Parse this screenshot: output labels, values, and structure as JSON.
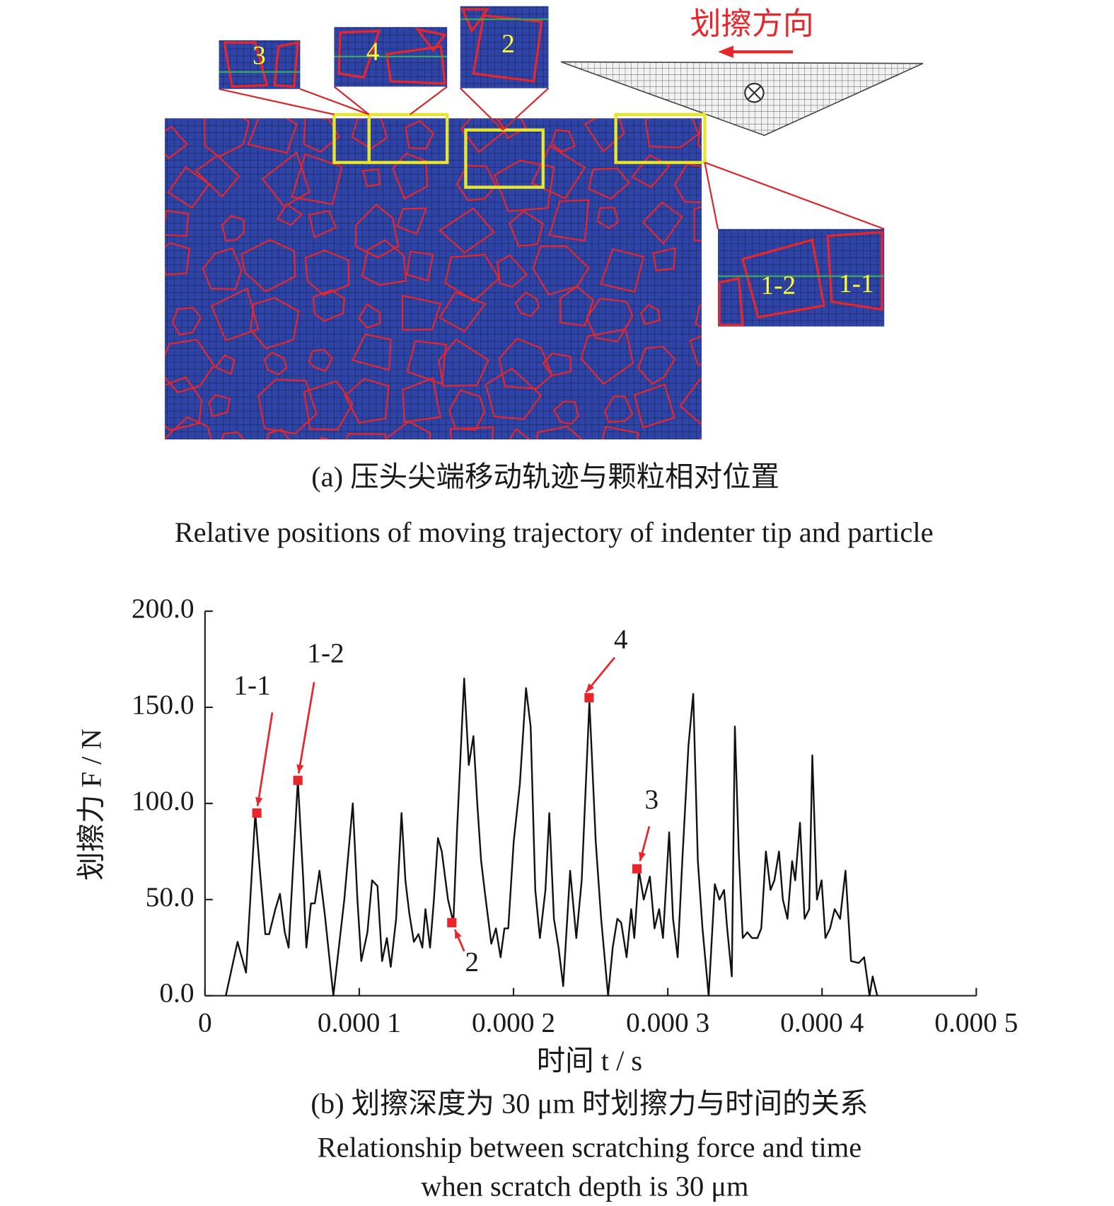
{
  "figure_a": {
    "direction_label": "划擦方向",
    "inset_labels": [
      "3",
      "4",
      "2",
      "1-2",
      "1-1"
    ],
    "caption_cn": "(a) 压头尖端移动轨迹与颗粒相对位置",
    "caption_en": "Relative positions of moving trajectory of indenter tip and particle"
  },
  "chart_data": {
    "type": "line",
    "xlabel": "时间 t / s",
    "ylabel": "划擦力 F / N",
    "caption_cn": "(b) 划擦深度为 30 μm 时划擦力与时间的关系",
    "caption_en": [
      "Relationship between scratching force and time",
      "when scratch depth is 30 μm"
    ],
    "xlim": [
      0,
      0.0005
    ],
    "ylim": [
      0,
      200
    ],
    "xticks": [
      0,
      {
        "value": 0.0001,
        "label": "0.000 1"
      },
      {
        "value": 0.0002,
        "label": "0.000 2"
      },
      {
        "value": 0.0003,
        "label": "0.000 3"
      },
      {
        "value": 0.0004,
        "label": "0.000 4"
      },
      {
        "value": 0.0005,
        "label": "0.000 5"
      }
    ],
    "yticks": [
      {
        "value": 0,
        "label": "0.0"
      },
      {
        "value": 50,
        "label": "50.0"
      },
      {
        "value": 100,
        "label": "100.0"
      },
      {
        "value": 150,
        "label": "150.0"
      },
      {
        "value": 200,
        "label": "200.0"
      }
    ],
    "x": [
      1.35e-05,
      2.11e-05,
      2.66e-05,
      3.26e-05,
      3.56e-05,
      3.91e-05,
      4.16e-05,
      4.56e-05,
      4.86e-05,
      5.17e-05,
      5.42e-05,
      6.02e-05,
      6.37e-05,
      6.57e-05,
      6.87e-05,
      7.12e-05,
      7.42e-05,
      7.77e-05,
      8.32e-05,
      9.03e-05,
      9.58e-05,
      9.88e-05,
      0.0001013,
      0.0001053,
      0.0001083,
      0.0001118,
      0.0001148,
      0.0001179,
      0.0001204,
      0.0001239,
      0.0001274,
      0.0001299,
      0.0001324,
      0.0001354,
      0.0001384,
      0.0001409,
      0.0001429,
      0.0001459,
      0.0001484,
      0.000151,
      0.0001535,
      0.0001575,
      0.000161,
      0.0001635,
      0.000168,
      0.000171,
      0.000174,
      0.0001765,
      0.000179,
      0.000182,
      0.0001856,
      0.0001886,
      0.0001916,
      0.0001941,
      0.0001966,
      0.0002001,
      0.0002041,
      0.0002081,
      0.0002111,
      0.0002141,
      0.0002171,
      0.0002207,
      0.0002232,
      0.0002262,
      0.0002292,
      0.0002322,
      0.0002367,
      0.0002407,
      0.0002442,
      0.0002492,
      0.0002533,
      0.0002568,
      0.0002613,
      0.0002643,
      0.0002673,
      0.0002698,
      0.0002733,
      0.0002763,
      0.0002783,
      0.0002813,
      0.0002844,
      0.0002884,
      0.0002914,
      0.0002944,
      0.0002969,
      0.0003009,
      0.0003034,
      0.0003064,
      0.0003094,
      0.0003134,
      0.0003165,
      0.0003195,
      0.0003225,
      0.0003265,
      0.0003305,
      0.0003335,
      0.0003365,
      0.0003385,
      0.0003415,
      0.0003435,
      0.000346,
      0.0003486,
      0.0003516,
      0.0003546,
      0.0003581,
      0.0003606,
      0.0003636,
      0.0003666,
      0.0003691,
      0.0003721,
      0.0003746,
      0.0003776,
      0.0003806,
      0.0003826,
      0.0003857,
      0.0003887,
      0.0003917,
      0.0003937,
      0.0003967,
      0.0003997,
      0.0004022,
      0.0004052,
      0.0004082,
      0.0004117,
      0.0004152,
      0.0004188,
      0.0004238,
      0.0004273,
      0.0004308,
      0.0004328,
      0.0004358
    ],
    "series": [
      {
        "color": "#111111",
        "values": [
          0,
          28,
          12,
          95,
          65,
          32,
          32,
          45,
          53,
          33,
          25,
          112,
          60,
          25,
          48,
          48,
          65,
          42,
          0,
          50,
          100,
          50,
          18,
          33,
          60,
          57,
          18,
          30,
          15,
          40,
          95,
          60,
          43,
          28,
          32,
          25,
          45,
          25,
          50,
          82,
          75,
          50,
          38,
          88,
          165,
          120,
          135,
          100,
          70,
          50,
          27,
          35,
          20,
          35,
          35,
          80,
          110,
          160,
          140,
          55,
          30,
          55,
          95,
          40,
          25,
          5,
          65,
          30,
          60,
          153,
          80,
          40,
          0,
          25,
          40,
          38,
          20,
          45,
          30,
          65,
          50,
          62,
          35,
          45,
          30,
          85,
          40,
          20,
          70,
          130,
          157,
          70,
          35,
          0,
          58,
          50,
          55,
          35,
          10,
          140,
          75,
          30,
          33,
          30,
          30,
          35,
          75,
          55,
          60,
          75,
          50,
          40,
          70,
          60,
          90,
          40,
          45,
          125,
          50,
          60,
          30,
          35,
          45,
          40,
          65,
          18,
          17,
          20,
          0,
          10,
          0
        ]
      }
    ],
    "annotations": [
      {
        "label": "1-1",
        "x": 3.36e-05,
        "y": 95
      },
      {
        "label": "1-2",
        "x": 6.02e-05,
        "y": 112
      },
      {
        "label": "2",
        "x": 0.00016,
        "y": 38
      },
      {
        "label": "4",
        "x": 0.000249,
        "y": 155
      },
      {
        "label": "3",
        "x": 0.00028,
        "y": 66
      }
    ],
    "marker_color": "#e8262a"
  }
}
